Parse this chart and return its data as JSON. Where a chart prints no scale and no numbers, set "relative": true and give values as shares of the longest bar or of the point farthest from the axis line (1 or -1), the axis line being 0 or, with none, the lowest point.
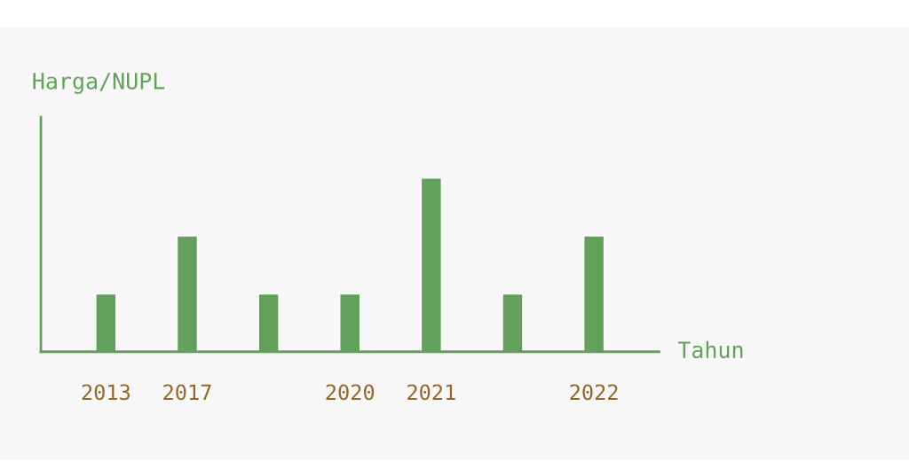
{
  "chart_data": {
    "type": "bar",
    "ylabel": "Harga/NUPL",
    "xlabel": "Tahun",
    "relative": true,
    "categories": [
      "2013",
      "2017",
      null,
      "2020",
      "2021",
      null,
      "2022"
    ],
    "values": [
      0.333,
      0.667,
      0.333,
      0.333,
      1,
      0.333,
      0.667
    ],
    "color": "#63a05b",
    "grid": false,
    "legend": false
  }
}
